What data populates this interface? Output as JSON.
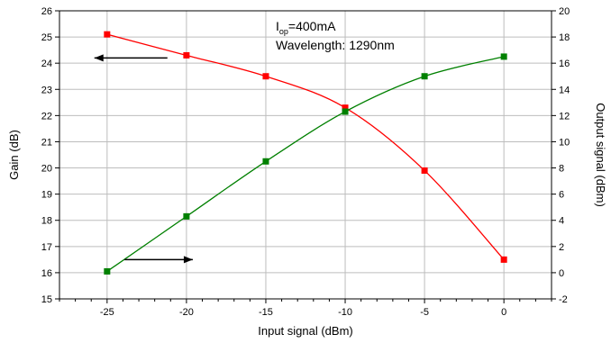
{
  "chart_data": {
    "type": "line",
    "x": [
      -25,
      -20,
      -15,
      -10,
      -5,
      0
    ],
    "xlabel": "Input signal (dBm)",
    "xlim": [
      -28,
      3
    ],
    "xticks": [
      -25,
      -20,
      -15,
      -10,
      -5,
      0
    ],
    "ylabel_left": "Gain (dB)",
    "ylim_left": [
      15,
      26
    ],
    "yticks_left": [
      15,
      16,
      17,
      18,
      19,
      20,
      21,
      22,
      23,
      24,
      25,
      26
    ],
    "ylabel_right": "Output signal (dBm)",
    "ylim_right": [
      -2,
      20
    ],
    "yticks_right": [
      -2,
      0,
      2,
      4,
      6,
      8,
      10,
      12,
      14,
      16,
      18,
      20
    ],
    "grid": true,
    "series": [
      {
        "axis": "left",
        "color": "#ff0000",
        "values": [
          25.1,
          24.3,
          23.5,
          22.3,
          19.9,
          16.5
        ]
      },
      {
        "axis": "right",
        "color": "#008000",
        "values": [
          0.1,
          4.3,
          8.5,
          12.3,
          15.0,
          16.5
        ]
      }
    ],
    "annotations": {
      "current_prefix": "I",
      "current_subscript": "op",
      "current_value": "=400mA",
      "wavelength": "Wavelength: 1290nm"
    },
    "arrows": [
      {
        "points_to": "left",
        "series_axis": "left"
      },
      {
        "points_to": "right",
        "series_axis": "right"
      }
    ]
  }
}
